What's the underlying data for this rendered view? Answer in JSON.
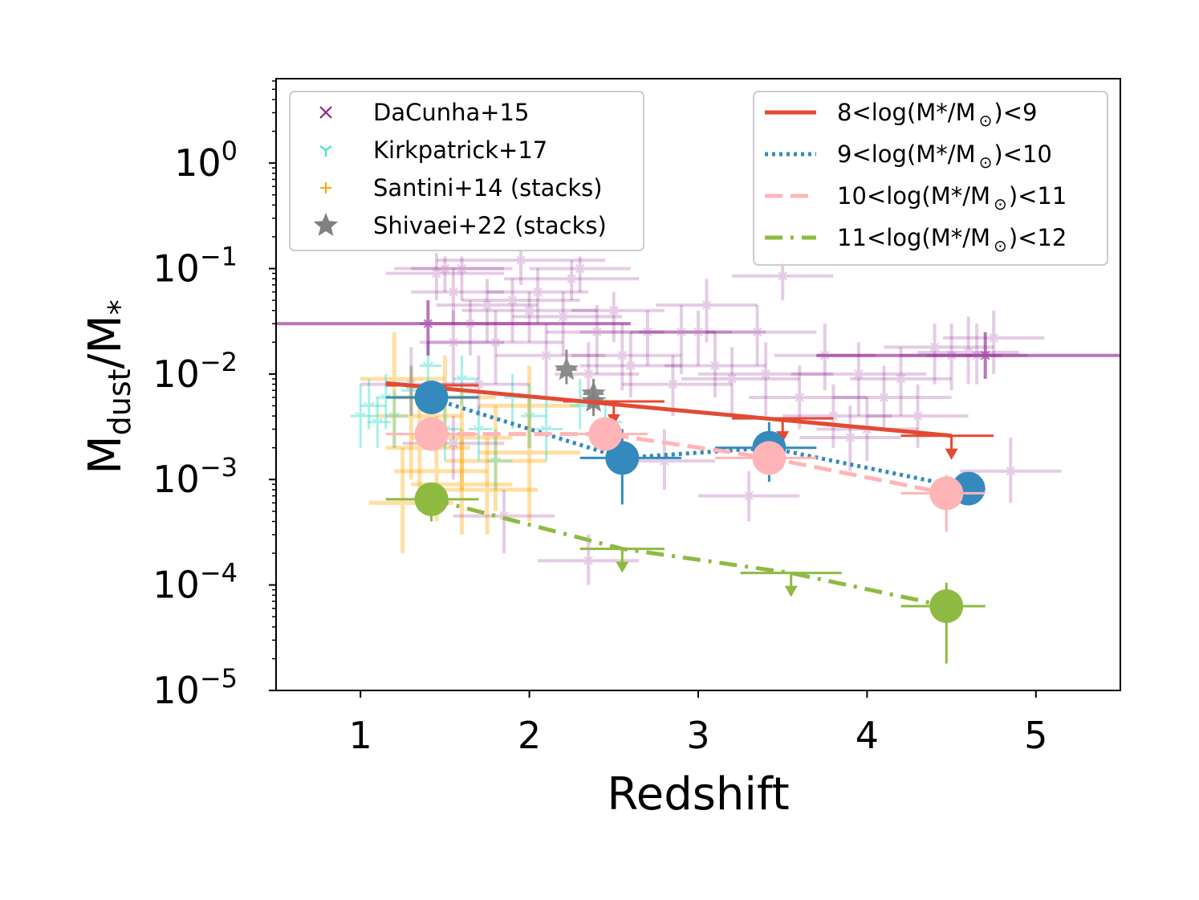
{
  "chart_data": {
    "type": "scatter",
    "title": "",
    "xlabel": "Redshift",
    "ylabel": {
      "base": "M",
      "sub1": "dust",
      "mid": "/M",
      "sub2": "*"
    },
    "xlim": [
      0.5,
      5.5
    ],
    "ylim_log10": [
      -5.0,
      0.8
    ],
    "yscale": "log",
    "x_ticks": [
      {
        "value": 1,
        "label": "1"
      },
      {
        "value": 2,
        "label": "2"
      },
      {
        "value": 3,
        "label": "3"
      },
      {
        "value": 4,
        "label": "4"
      },
      {
        "value": 5,
        "label": "5"
      }
    ],
    "y_ticks": [
      {
        "exp": 0,
        "base": "10",
        "sup": "0"
      },
      {
        "exp": -1,
        "base": "10",
        "sup": "−1"
      },
      {
        "exp": -2,
        "base": "10",
        "sup": "−2"
      },
      {
        "exp": -3,
        "base": "10",
        "sup": "−3"
      },
      {
        "exp": -4,
        "base": "10",
        "sup": "−4"
      },
      {
        "exp": -5,
        "base": "10",
        "sup": "−5"
      }
    ],
    "colors": {
      "dacunha": "#8b1a8b",
      "kirkpatrick": "#40e0d0",
      "santini": "#ffa500",
      "shivaei": "#808080",
      "m8": "#e24a33",
      "m9": "#348abd",
      "m10": "#ffb5b8",
      "m11": "#8eba42"
    },
    "legend_left": [
      {
        "label": "DaCunha+15",
        "marker": "x",
        "color_key": "dacunha"
      },
      {
        "label": "Kirkpatrick+17",
        "marker": "tri",
        "color_key": "kirkpatrick"
      },
      {
        "label": "Santini+14 (stacks)",
        "marker": "plus",
        "color_key": "santini"
      },
      {
        "label": "Shivaei+22 (stacks)",
        "marker": "star",
        "color_key": "shivaei"
      }
    ],
    "legend_right": [
      {
        "label": "8<log(M*/M",
        "sun": "⊙",
        "tail": ")<9",
        "style": "solid",
        "color_key": "m8"
      },
      {
        "label": "9<log(M*/M",
        "sun": "⊙",
        "tail": ")<10",
        "style": "dotted",
        "color_key": "m9"
      },
      {
        "label": "10<log(M*/M",
        "sun": "⊙",
        "tail": ")<11",
        "style": "dashed",
        "color_key": "m10"
      },
      {
        "label": "11<log(M*/M",
        "sun": "⊙",
        "tail": ")<12",
        "style": "dashdot",
        "color_key": "m11"
      }
    ],
    "series": [
      {
        "name": "8<log(M*/Mo)<9",
        "color_key": "m8",
        "style": "solid",
        "line": [
          [
            1.15,
            0.0082
          ],
          [
            4.5,
            0.0026
          ]
        ],
        "points": [],
        "upper_limits": [
          {
            "x": 1.4,
            "y": 0.0078,
            "xerr": [
              1.15,
              1.7
            ]
          },
          {
            "x": 2.5,
            "y": 0.0055,
            "xerr": [
              2.2,
              2.8
            ]
          },
          {
            "x": 3.5,
            "y": 0.0038,
            "xerr": [
              3.2,
              3.8
            ]
          },
          {
            "x": 4.5,
            "y": 0.0026,
            "xerr": [
              4.2,
              4.75
            ]
          }
        ]
      },
      {
        "name": "9<log(M*/Mo)<10",
        "color_key": "m9",
        "style": "dotted",
        "line": [
          [
            1.4,
            0.006
          ],
          [
            2.55,
            0.0016
          ],
          [
            3.42,
            0.002
          ],
          [
            4.6,
            0.00082
          ]
        ],
        "points": [
          {
            "x": 1.42,
            "y": 0.006,
            "xerr": [
              1.15,
              1.7
            ],
            "yerr": [
              0.0045,
              0.008
            ]
          },
          {
            "x": 2.55,
            "y": 0.0016,
            "xerr": [
              2.3,
              2.9
            ],
            "yerr": [
              0.00058,
              0.003
            ]
          },
          {
            "x": 3.42,
            "y": 0.002,
            "xerr": [
              3.1,
              3.7
            ],
            "yerr": [
              0.00095,
              0.0035
            ]
          },
          {
            "x": 4.6,
            "y": 0.00082,
            "xerr": [
              4.4,
              4.7
            ],
            "yerr": [
              0.00078,
              0.00086
            ]
          }
        ],
        "upper_limits": []
      },
      {
        "name": "10<log(M*/Mo)<11",
        "color_key": "m10",
        "style": "dashed",
        "line": [
          [
            1.42,
            0.0027
          ],
          [
            2.45,
            0.0027
          ],
          [
            3.42,
            0.0016
          ],
          [
            4.47,
            0.00074
          ]
        ],
        "points": [
          {
            "x": 1.42,
            "y": 0.0027,
            "xerr": [
              1.15,
              1.7
            ],
            "yerr": [
              0.0021,
              0.0034
            ]
          },
          {
            "x": 2.45,
            "y": 0.0027,
            "xerr": [
              2.2,
              2.7
            ],
            "yerr": [
              0.002,
              0.0035
            ]
          },
          {
            "x": 3.42,
            "y": 0.0016,
            "xerr": [
              3.1,
              3.7
            ],
            "yerr": [
              0.0011,
              0.0023
            ]
          },
          {
            "x": 4.47,
            "y": 0.00074,
            "xerr": [
              4.2,
              4.7
            ],
            "yerr": [
              0.00032,
              0.0011
            ]
          }
        ],
        "upper_limits": []
      },
      {
        "name": "11<log(M*/Mo)<12",
        "color_key": "m11",
        "style": "dashdot",
        "line": [
          [
            1.42,
            0.00065
          ],
          [
            2.55,
            0.00022
          ],
          [
            3.55,
            0.00013
          ],
          [
            4.47,
            6.3e-05
          ]
        ],
        "points": [
          {
            "x": 1.42,
            "y": 0.00065,
            "xerr": [
              1.15,
              1.7
            ],
            "yerr": [
              0.0004,
              0.00085
            ]
          },
          {
            "x": 4.47,
            "y": 6.3e-05,
            "xerr": [
              4.2,
              4.7
            ],
            "yerr": [
              1.8e-05,
              0.000105
            ]
          }
        ],
        "upper_limits": [
          {
            "x": 2.55,
            "y": 0.00022,
            "xerr": [
              2.3,
              2.8
            ]
          },
          {
            "x": 3.55,
            "y": 0.00013,
            "xerr": [
              3.25,
              3.85
            ]
          }
        ]
      }
    ],
    "dacunha_points": [
      [
        1.3,
        0.008,
        0.3,
        0.4,
        0.004,
        0.018
      ],
      [
        1.45,
        0.09,
        0.3,
        0.4,
        0.05,
        0.14
      ],
      [
        1.5,
        0.1,
        0.3,
        0.35,
        0.06,
        0.13
      ],
      [
        1.55,
        0.06,
        0.25,
        0.3,
        0.03,
        0.1
      ],
      [
        1.6,
        0.1,
        0.3,
        0.3,
        0.05,
        0.13
      ],
      [
        1.55,
        0.02,
        0.2,
        0.3,
        0.008,
        0.04
      ],
      [
        1.65,
        0.03,
        0.3,
        0.35,
        0.015,
        0.05
      ],
      [
        1.7,
        0.008,
        0.25,
        0.3,
        0.004,
        0.015
      ],
      [
        1.8,
        0.02,
        0.4,
        0.4,
        0.008,
        0.04
      ],
      [
        1.9,
        0.05,
        0.3,
        0.4,
        0.02,
        0.08
      ],
      [
        1.95,
        0.12,
        0.5,
        0.5,
        0.07,
        0.15
      ],
      [
        2.0,
        0.04,
        0.4,
        0.4,
        0.02,
        0.06
      ],
      [
        2.1,
        0.015,
        0.3,
        0.35,
        0.006,
        0.03
      ],
      [
        2.2,
        0.035,
        0.3,
        0.35,
        0.015,
        0.06
      ],
      [
        2.25,
        0.08,
        0.4,
        0.4,
        0.05,
        0.12
      ],
      [
        2.3,
        0.1,
        0.3,
        0.3,
        0.06,
        0.13
      ],
      [
        2.35,
        0.01,
        0.2,
        0.3,
        0.005,
        0.02
      ],
      [
        2.4,
        0.025,
        0.3,
        0.4,
        0.01,
        0.045
      ],
      [
        2.5,
        0.04,
        0.25,
        0.3,
        0.02,
        0.06
      ],
      [
        2.55,
        0.015,
        0.3,
        0.35,
        0.007,
        0.03
      ],
      [
        2.7,
        0.025,
        0.4,
        0.4,
        0.012,
        0.04
      ],
      [
        2.85,
        0.008,
        0.3,
        0.35,
        0.004,
        0.015
      ],
      [
        2.9,
        0.025,
        0.3,
        0.3,
        0.01,
        0.045
      ],
      [
        3.0,
        0.025,
        0.35,
        0.4,
        0.012,
        0.04
      ],
      [
        3.1,
        0.012,
        0.3,
        0.3,
        0.006,
        0.025
      ],
      [
        3.2,
        0.009,
        0.3,
        0.4,
        0.004,
        0.018
      ],
      [
        3.35,
        0.025,
        0.3,
        0.35,
        0.012,
        0.045
      ],
      [
        3.4,
        0.01,
        0.4,
        0.4,
        0.004,
        0.02
      ],
      [
        3.5,
        0.085,
        0.3,
        0.3,
        0.05,
        0.12
      ],
      [
        3.6,
        0.006,
        0.3,
        0.4,
        0.003,
        0.012
      ],
      [
        3.75,
        0.015,
        0.3,
        0.3,
        0.007,
        0.03
      ],
      [
        3.8,
        0.004,
        0.3,
        0.35,
        0.002,
        0.008
      ],
      [
        3.95,
        0.01,
        0.4,
        0.4,
        0.004,
        0.02
      ],
      [
        4.0,
        0.003,
        0.3,
        0.3,
        0.0015,
        0.006
      ],
      [
        4.1,
        0.006,
        0.3,
        0.4,
        0.003,
        0.012
      ],
      [
        4.3,
        0.004,
        0.3,
        0.3,
        0.002,
        0.008
      ],
      [
        4.4,
        0.018,
        0.3,
        0.35,
        0.008,
        0.03
      ],
      [
        4.5,
        0.015,
        0.3,
        0.3,
        0.007,
        0.03
      ],
      [
        4.6,
        0.016,
        0.3,
        0.3,
        0.008,
        0.035
      ],
      [
        4.65,
        0.015,
        0.3,
        0.3,
        0.008,
        0.03
      ],
      [
        4.75,
        0.022,
        0.3,
        0.3,
        0.01,
        0.04
      ],
      [
        4.85,
        0.0012,
        0.3,
        0.3,
        0.0006,
        0.0025
      ],
      [
        3.3,
        0.0007,
        0.3,
        0.3,
        0.0004,
        0.0012
      ],
      [
        2.35,
        0.00017,
        0.3,
        0.3,
        0.0001,
        0.0003
      ],
      [
        1.85,
        0.00045,
        0.3,
        0.3,
        0.0002,
        0.0008
      ],
      [
        1.55,
        0.0022,
        0.3,
        0.3,
        0.001,
        0.004
      ],
      [
        2.8,
        0.0015,
        0.3,
        0.3,
        0.0008,
        0.003
      ],
      [
        3.9,
        0.0025,
        0.3,
        0.3,
        0.0012,
        0.005
      ],
      [
        4.2,
        0.009,
        0.3,
        0.3,
        0.004,
        0.018
      ],
      [
        2.6,
        0.012,
        0.3,
        0.3,
        0.006,
        0.025
      ],
      [
        3.05,
        0.045,
        0.3,
        0.3,
        0.02,
        0.08
      ],
      [
        1.75,
        0.045,
        0.3,
        0.3,
        0.02,
        0.08
      ],
      [
        2.05,
        0.06,
        0.3,
        0.3,
        0.03,
        0.1
      ],
      [
        4.7,
        0.015,
        1.0,
        1.0,
        0.009,
        0.025
      ],
      [
        1.4,
        0.03,
        1.0,
        1.2,
        0.015,
        0.05
      ]
    ],
    "kirkpatrick_points": [
      [
        1.0,
        0.004,
        0.06,
        0.1,
        0.002,
        0.008
      ],
      [
        1.05,
        0.005,
        0.05,
        0.1,
        0.003,
        0.009
      ],
      [
        1.1,
        0.0035,
        0.06,
        0.08,
        0.002,
        0.006
      ],
      [
        1.15,
        0.006,
        0.06,
        0.1,
        0.003,
        0.01
      ],
      [
        1.2,
        0.004,
        0.05,
        0.08,
        0.002,
        0.007
      ],
      [
        1.3,
        0.007,
        0.06,
        0.1,
        0.004,
        0.012
      ],
      [
        1.5,
        0.003,
        0.06,
        0.1,
        0.0015,
        0.006
      ],
      [
        1.6,
        0.009,
        0.05,
        0.1,
        0.005,
        0.015
      ],
      [
        1.7,
        0.003,
        0.06,
        0.08,
        0.0015,
        0.005
      ],
      [
        1.8,
        0.0015,
        0.05,
        0.1,
        0.0008,
        0.003
      ],
      [
        1.9,
        0.006,
        0.05,
        0.08,
        0.003,
        0.01
      ],
      [
        2.0,
        0.004,
        0.05,
        0.1,
        0.002,
        0.008
      ],
      [
        2.1,
        0.003,
        0.06,
        0.1,
        0.0015,
        0.006
      ],
      [
        2.3,
        0.005,
        0.06,
        0.1,
        0.003,
        0.009
      ],
      [
        1.4,
        0.012,
        0.05,
        0.08,
        0.006,
        0.02
      ],
      [
        2.45,
        0.0035,
        0.06,
        0.1,
        0.002,
        0.006
      ]
    ],
    "santini_points": [
      [
        1.2,
        0.009,
        0.2,
        0.3,
        0.002,
        0.025
      ],
      [
        1.3,
        0.004,
        0.2,
        0.3,
        0.001,
        0.012
      ],
      [
        1.35,
        0.002,
        0.2,
        0.3,
        0.0006,
        0.006
      ],
      [
        1.45,
        0.0012,
        0.25,
        0.3,
        0.0004,
        0.004
      ],
      [
        1.5,
        0.006,
        0.3,
        0.3,
        0.002,
        0.015
      ],
      [
        1.6,
        0.0025,
        0.3,
        0.3,
        0.0008,
        0.008
      ],
      [
        1.75,
        0.0008,
        0.3,
        0.3,
        0.0003,
        0.0025
      ],
      [
        1.8,
        0.0015,
        0.3,
        0.3,
        0.0005,
        0.005
      ],
      [
        2.0,
        0.005,
        0.3,
        0.3,
        0.002,
        0.012
      ],
      [
        2.0,
        0.0018,
        0.3,
        0.3,
        0.0004,
        0.006
      ],
      [
        1.25,
        0.0006,
        0.2,
        0.3,
        0.0002,
        0.002
      ],
      [
        1.6,
        0.0009,
        0.3,
        0.3,
        0.0003,
        0.003
      ]
    ],
    "shivaei_points": [
      [
        2.22,
        0.011,
        0.06,
        0.06,
        0.008,
        0.017
      ],
      [
        2.38,
        0.0065,
        0.06,
        0.06,
        0.0045,
        0.009
      ],
      [
        2.38,
        0.0055,
        0.06,
        0.06,
        0.004,
        0.008
      ]
    ]
  }
}
